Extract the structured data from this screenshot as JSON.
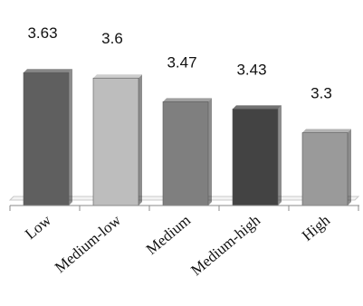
{
  "chart_data": {
    "type": "bar",
    "categories": [
      "Low",
      "Medium-low",
      "Medium",
      "Medium-high",
      "High"
    ],
    "values": [
      3.63,
      3.6,
      3.47,
      3.43,
      3.3
    ],
    "data_labels": [
      "3.63",
      "3.6",
      "3.47",
      "3.43",
      "3.3"
    ],
    "title": "",
    "xlabel": "",
    "ylabel": "",
    "ylim": [
      2.9,
      3.8
    ],
    "grid": false,
    "legend": "none",
    "colors": [
      "#5f5f5f",
      "#bdbdbd",
      "#7f7f7f",
      "#434343",
      "#9a9a9a"
    ]
  }
}
